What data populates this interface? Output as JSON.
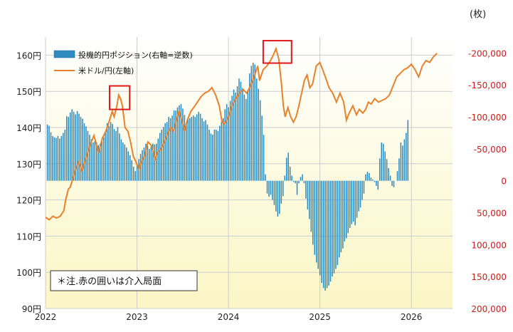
{
  "chart_data": {
    "type": "bar+line",
    "right_axis_unit": "(枚)",
    "note": "＊注.赤の囲いは介入局面",
    "left_axis": {
      "ylim": [
        90,
        165
      ],
      "ticks": [
        {
          "v": 90,
          "label": "90円"
        },
        {
          "v": 100,
          "label": "100円"
        },
        {
          "v": 110,
          "label": "110円"
        },
        {
          "v": 120,
          "label": "120円"
        },
        {
          "v": 130,
          "label": "130円"
        },
        {
          "v": 140,
          "label": "140円"
        },
        {
          "v": 150,
          "label": "150円"
        },
        {
          "v": 160,
          "label": "160円"
        }
      ]
    },
    "right_axis": {
      "inverted": true,
      "ylim": [
        -225000,
        200000
      ],
      "ticks": [
        {
          "v": -200000,
          "label": "-200,000"
        },
        {
          "v": -150000,
          "label": "-150,000"
        },
        {
          "v": -100000,
          "label": "-100,000"
        },
        {
          "v": -50000,
          "label": "-50,000"
        },
        {
          "v": 0,
          "label": "0"
        },
        {
          "v": 50000,
          "label": "50,000"
        },
        {
          "v": 100000,
          "label": "100,000"
        },
        {
          "v": 150000,
          "label": "150,000"
        },
        {
          "v": 200000,
          "label": "200,000"
        }
      ]
    },
    "x_axis": {
      "range": [
        2022.0,
        2026.45
      ],
      "ticks": [
        {
          "v": 2022,
          "label": "2022"
        },
        {
          "v": 2023,
          "label": "2023"
        },
        {
          "v": 2024,
          "label": "2024"
        },
        {
          "v": 2025,
          "label": "2025"
        },
        {
          "v": 2026,
          "label": "2026"
        }
      ]
    },
    "series": [
      {
        "name": "投機的円ポジション(右軸=逆数)",
        "kind": "bar",
        "axis": "right",
        "color": "#2e8bc0",
        "x_start": 2022.02,
        "x_step": 0.01923,
        "values": [
          -88000,
          -86000,
          -76000,
          -70000,
          -68000,
          -67000,
          -70000,
          -66000,
          -70000,
          -75000,
          -80000,
          -101000,
          -100000,
          -107000,
          -112000,
          -108000,
          -104000,
          -109000,
          -105000,
          -100000,
          -97000,
          -90000,
          -85000,
          -78000,
          -72000,
          -65000,
          -60000,
          -62000,
          -60000,
          -56000,
          -58000,
          -62000,
          -68000,
          -75000,
          -90000,
          -86000,
          -92000,
          -89000,
          -81000,
          -78000,
          -84000,
          -74000,
          -65000,
          -60000,
          -57000,
          -52000,
          -46000,
          -40000,
          -32000,
          -22000,
          -15000,
          -26000,
          -34000,
          -42000,
          -48000,
          -52000,
          -58000,
          -55000,
          -50000,
          -54000,
          -58000,
          -57000,
          -58000,
          -66000,
          -75000,
          -80000,
          -84000,
          -90000,
          -92000,
          -100000,
          -98000,
          -102000,
          -110000,
          -110000,
          -115000,
          -118000,
          -120000,
          -113000,
          -103000,
          -90000,
          -96000,
          -98000,
          -100000,
          -102000,
          -100000,
          -104000,
          -108000,
          -105000,
          -98000,
          -93000,
          -95000,
          -88000,
          -80000,
          -74000,
          -72000,
          -80000,
          -80000,
          -78000,
          -86000,
          -92000,
          -98000,
          -112000,
          -120000,
          -115000,
          -125000,
          -133000,
          -143000,
          -138000,
          -148000,
          -160000,
          -155000,
          -145000,
          -135000,
          -128000,
          -140000,
          -168000,
          -180000,
          -185000,
          -182000,
          -160000,
          -144000,
          -126000,
          -102000,
          -72000,
          -10000,
          20000,
          25000,
          22000,
          30000,
          38000,
          48000,
          56000,
          52000,
          36000,
          24000,
          -8000,
          -36000,
          -44000,
          -22000,
          -8000,
          2000,
          4000,
          22000,
          4000,
          -6000,
          -10000,
          4000,
          28000,
          45000,
          60000,
          80000,
          100000,
          116000,
          128000,
          138000,
          148000,
          160000,
          168000,
          172000,
          168000,
          164000,
          158000,
          150000,
          145000,
          138000,
          132000,
          120000,
          112000,
          106000,
          95000,
          90000,
          82000,
          74000,
          68000,
          64000,
          70000,
          58000,
          48000,
          42000,
          30000,
          20000,
          -10000,
          -14000,
          -12000,
          -5000,
          -2000,
          2000,
          8000,
          14000,
          -35000,
          -60000,
          -58000,
          -46000,
          -34000,
          -20000,
          -8000,
          8000,
          10000,
          0,
          -15000,
          -35000,
          -60000,
          -55000,
          -65000,
          -75000,
          -95000
        ]
      },
      {
        "name": "米ドル/円(左軸)",
        "kind": "line",
        "axis": "left",
        "color": "#e8812c",
        "points": [
          [
            2022.0,
            115.2
          ],
          [
            2022.04,
            114.5
          ],
          [
            2022.08,
            115.5
          ],
          [
            2022.12,
            115
          ],
          [
            2022.16,
            115.5
          ],
          [
            2022.2,
            117
          ],
          [
            2022.22,
            120
          ],
          [
            2022.25,
            123
          ],
          [
            2022.27,
            123.5
          ],
          [
            2022.3,
            126
          ],
          [
            2022.33,
            128.5
          ],
          [
            2022.36,
            130.5
          ],
          [
            2022.4,
            128
          ],
          [
            2022.42,
            130
          ],
          [
            2022.46,
            133
          ],
          [
            2022.5,
            136
          ],
          [
            2022.53,
            137.8
          ],
          [
            2022.56,
            135
          ],
          [
            2022.58,
            133
          ],
          [
            2022.62,
            137
          ],
          [
            2022.66,
            139
          ],
          [
            2022.7,
            142
          ],
          [
            2022.73,
            144.5
          ],
          [
            2022.75,
            143
          ],
          [
            2022.78,
            146
          ],
          [
            2022.8,
            149
          ],
          [
            2022.82,
            148
          ],
          [
            2022.84,
            146
          ],
          [
            2022.87,
            140
          ],
          [
            2022.9,
            139
          ],
          [
            2022.93,
            136
          ],
          [
            2022.96,
            132
          ],
          [
            2022.98,
            131
          ],
          [
            2023.02,
            128.5
          ],
          [
            2023.04,
            130
          ],
          [
            2023.08,
            132
          ],
          [
            2023.12,
            136
          ],
          [
            2023.16,
            135
          ],
          [
            2023.2,
            131
          ],
          [
            2023.22,
            133
          ],
          [
            2023.26,
            134
          ],
          [
            2023.3,
            136
          ],
          [
            2023.34,
            138.5
          ],
          [
            2023.37,
            140
          ],
          [
            2023.4,
            139
          ],
          [
            2023.43,
            142
          ],
          [
            2023.46,
            144.5
          ],
          [
            2023.5,
            141
          ],
          [
            2023.52,
            139
          ],
          [
            2023.55,
            142
          ],
          [
            2023.59,
            144.5
          ],
          [
            2023.62,
            145.5
          ],
          [
            2023.66,
            147
          ],
          [
            2023.7,
            148.5
          ],
          [
            2023.74,
            149.5
          ],
          [
            2023.78,
            150
          ],
          [
            2023.82,
            151
          ],
          [
            2023.86,
            149
          ],
          [
            2023.9,
            146
          ],
          [
            2023.93,
            141.5
          ],
          [
            2023.96,
            141
          ],
          [
            2024.0,
            143
          ],
          [
            2024.04,
            146
          ],
          [
            2024.08,
            148
          ],
          [
            2024.12,
            149.5
          ],
          [
            2024.16,
            150.5
          ],
          [
            2024.2,
            149.5
          ],
          [
            2024.24,
            151.5
          ],
          [
            2024.28,
            154
          ],
          [
            2024.32,
            157
          ],
          [
            2024.34,
            153
          ],
          [
            2024.38,
            156
          ],
          [
            2024.42,
            157
          ],
          [
            2024.46,
            158.5
          ],
          [
            2024.49,
            160
          ],
          [
            2024.52,
            161.8
          ],
          [
            2024.55,
            159
          ],
          [
            2024.58,
            152
          ],
          [
            2024.6,
            146
          ],
          [
            2024.62,
            143
          ],
          [
            2024.65,
            145.5
          ],
          [
            2024.68,
            143
          ],
          [
            2024.71,
            141.5
          ],
          [
            2024.74,
            143
          ],
          [
            2024.77,
            146
          ],
          [
            2024.8,
            149.5
          ],
          [
            2024.83,
            153
          ],
          [
            2024.86,
            154.5
          ],
          [
            2024.89,
            151
          ],
          [
            2024.92,
            152
          ],
          [
            2024.96,
            157
          ],
          [
            2025.0,
            158
          ],
          [
            2025.03,
            156
          ],
          [
            2025.06,
            154
          ],
          [
            2025.1,
            151
          ],
          [
            2025.14,
            149.5
          ],
          [
            2025.18,
            147
          ],
          [
            2025.22,
            149.5
          ],
          [
            2025.26,
            147
          ],
          [
            2025.29,
            142
          ],
          [
            2025.32,
            144
          ],
          [
            2025.36,
            146
          ],
          [
            2025.4,
            143.5
          ],
          [
            2025.43,
            145
          ],
          [
            2025.47,
            144
          ],
          [
            2025.5,
            145
          ],
          [
            2025.53,
            147
          ],
          [
            2025.56,
            146.5
          ],
          [
            2025.6,
            148
          ],
          [
            2025.64,
            147
          ],
          [
            2025.68,
            147.5
          ],
          [
            2025.72,
            148
          ],
          [
            2025.76,
            149
          ],
          [
            2025.8,
            151.5
          ],
          [
            2025.84,
            154
          ],
          [
            2025.88,
            155
          ],
          [
            2025.92,
            156
          ],
          [
            2025.96,
            156.5
          ],
          [
            2026.0,
            157.5
          ],
          [
            2026.04,
            156
          ],
          [
            2026.08,
            154
          ],
          [
            2026.12,
            157
          ],
          [
            2026.16,
            158.5
          ],
          [
            2026.2,
            158
          ],
          [
            2026.24,
            159.5
          ],
          [
            2026.28,
            160.5
          ]
        ]
      }
    ],
    "highlights": [
      {
        "x0": 2022.7,
        "x1": 2022.92,
        "y0": 145,
        "y1": 151.5
      },
      {
        "x0": 2024.38,
        "x1": 2024.69,
        "y0": 157.8,
        "y1": 164
      }
    ],
    "colors": {
      "bar": "#2e8bc0",
      "line": "#e8812c",
      "right_axis": "#c8201c",
      "highlight": "#e01818",
      "background_top": "#ffffff",
      "background_bottom": "#fbf6c4",
      "grid": "#cccccc"
    }
  }
}
